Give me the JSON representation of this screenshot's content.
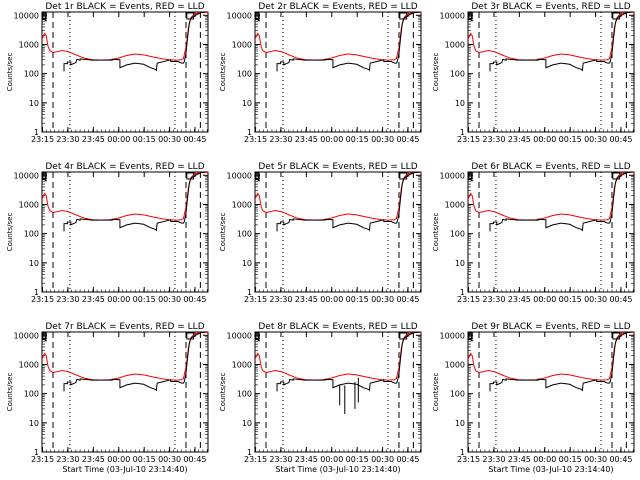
{
  "page": {
    "ylabel": "Counts/sec",
    "xlabel": "Start Time (03-Jul-10 23:14:40)",
    "colors": {
      "background": "#ffffff",
      "events": "#000000",
      "lld": "#ff0000",
      "axes": "#000000"
    }
  },
  "chart_data": [
    {
      "type": "line",
      "title": "Det 1r BLACK = Events, RED = LLD",
      "xlabel": "",
      "ylabel": "Counts/sec"
    },
    {
      "type": "line",
      "title": "Det 2r BLACK = Events, RED = LLD",
      "xlabel": "",
      "ylabel": "Counts/sec"
    },
    {
      "type": "line",
      "title": "Det 3r BLACK = Events, RED = LLD",
      "xlabel": "",
      "ylabel": "Counts/sec"
    },
    {
      "type": "line",
      "title": "Det 4r BLACK = Events, RED = LLD",
      "xlabel": "",
      "ylabel": "Counts/sec"
    },
    {
      "type": "line",
      "title": "Det 5r BLACK = Events, RED = LLD",
      "xlabel": "",
      "ylabel": "Counts/sec"
    },
    {
      "type": "line",
      "title": "Det 6r BLACK = Events, RED = LLD",
      "xlabel": "",
      "ylabel": "Counts/sec"
    },
    {
      "type": "line",
      "title": "Det 7r BLACK = Events, RED = LLD",
      "xlabel": "Start Time (03-Jul-10 23:14:40)",
      "ylabel": "Counts/sec"
    },
    {
      "type": "line",
      "title": "Det 8r BLACK = Events, RED = LLD",
      "xlabel": "Start Time (03-Jul-10 23:14:40)",
      "ylabel": "Counts/sec"
    },
    {
      "type": "line",
      "title": "Det 9r BLACK = Events, RED = LLD",
      "xlabel": "Start Time (03-Jul-10 23:14:40)",
      "ylabel": "Counts/sec"
    }
  ],
  "shared_axes": {
    "x_ticks": [
      "23:15",
      "23:30",
      "23:45",
      "00:00",
      "00:15",
      "00:30",
      "00:45"
    ],
    "x_tick_minutes": [
      0.33,
      15.33,
      30.33,
      45.33,
      60.33,
      75.33,
      90.33
    ],
    "xlim_minutes": [
      0,
      98
    ],
    "y_ticks": [
      "1",
      "10",
      "100",
      "1000",
      "10000"
    ],
    "y_tick_values": [
      1,
      10,
      100,
      1000,
      10000
    ],
    "ylim": [
      1,
      13000
    ],
    "y_scale": "log",
    "dashed_lines_minutes": [
      6.5,
      85.0,
      93.5
    ],
    "dotted_lines_minutes": [
      16.5,
      78.5
    ]
  },
  "series": {
    "lld": [
      [
        0.0,
        1500
      ],
      [
        1.5,
        2400
      ],
      [
        2.5,
        2000
      ],
      [
        3.5,
        900
      ],
      [
        4.5,
        620
      ],
      [
        6.5,
        530
      ],
      [
        8.5,
        560
      ],
      [
        12.0,
        620
      ],
      [
        16.0,
        560
      ],
      [
        20.0,
        440
      ],
      [
        25.0,
        340
      ],
      [
        30.0,
        300
      ],
      [
        35.0,
        295
      ],
      [
        40.0,
        300
      ],
      [
        45.0,
        340
      ],
      [
        50.0,
        420
      ],
      [
        55.0,
        470
      ],
      [
        60.0,
        440
      ],
      [
        65.0,
        380
      ],
      [
        70.0,
        330
      ],
      [
        75.0,
        300
      ],
      [
        79.0,
        290
      ],
      [
        82.0,
        300
      ],
      [
        83.5,
        330
      ],
      [
        85.0,
        800
      ],
      [
        86.5,
        4000
      ],
      [
        88.0,
        8500
      ],
      [
        90.0,
        11000
      ],
      [
        93.0,
        12500
      ],
      [
        98.0,
        12500
      ]
    ],
    "events_segments": [
      [
        [
          0.0,
          11000
        ],
        [
          2.0,
          11000
        ],
        [
          2.0,
          6500
        ],
        [
          3.0,
          6500
        ]
      ],
      [
        [
          13.0,
          120
        ],
        [
          13.0,
          220
        ],
        [
          15.0,
          220
        ],
        [
          15.0,
          250
        ],
        [
          17.0,
          250
        ],
        [
          17.0,
          200
        ],
        [
          20.0,
          240
        ],
        [
          20.5,
          310
        ],
        [
          22.5,
          290
        ],
        [
          22.5,
          320
        ],
        [
          29.5,
          290
        ],
        [
          41.5,
          290
        ],
        [
          41.5,
          310
        ],
        [
          46.0,
          300
        ],
        [
          46.0,
          160
        ],
        [
          50.0,
          200
        ],
        [
          55.0,
          230
        ],
        [
          60.0,
          210
        ],
        [
          64.0,
          160
        ],
        [
          67.0,
          140
        ],
        [
          67.5,
          130
        ],
        [
          68.0,
          230
        ],
        [
          76.0,
          300
        ],
        [
          76.0,
          260
        ],
        [
          80.0,
          260
        ],
        [
          80.5,
          260
        ],
        [
          81.5,
          240
        ],
        [
          82.5,
          230
        ],
        [
          83.5,
          230
        ],
        [
          84.0,
          260
        ],
        [
          85.0,
          500
        ],
        [
          86.0,
          1800
        ],
        [
          87.0,
          5500
        ],
        [
          88.0,
          8000
        ],
        [
          90.0,
          9500
        ],
        [
          92.0,
          11000
        ],
        [
          94.0,
          12500
        ],
        [
          96.0,
          12500
        ]
      ]
    ],
    "det8_events_dips": [
      [
        50.0,
        200,
        40
      ],
      [
        53.0,
        190,
        20
      ],
      [
        59.0,
        250,
        30
      ],
      [
        61.0,
        350,
        50
      ]
    ]
  },
  "panels_note_marks": {
    "corner_box_left_minutes": [
      0.5,
      2.5
    ],
    "corner_box_right_minutes": [
      85.5,
      89.5
    ]
  }
}
